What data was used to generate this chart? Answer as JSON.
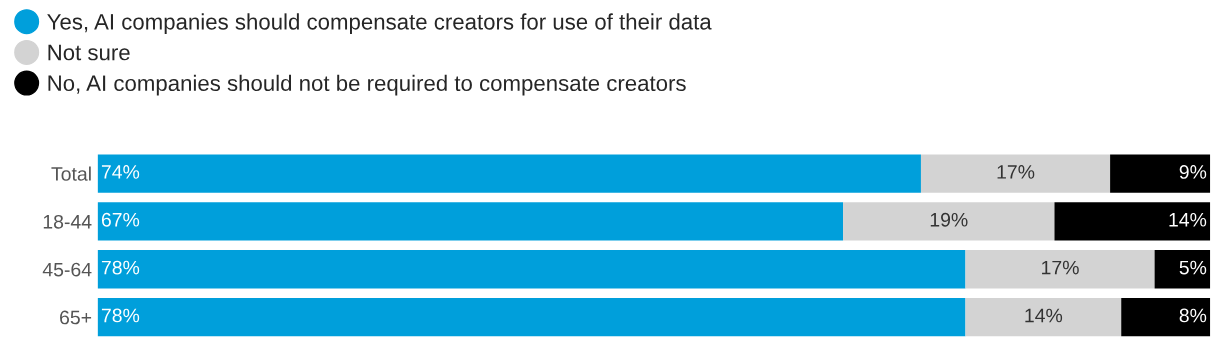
{
  "chart_data": {
    "type": "bar",
    "orientation": "horizontal",
    "stacked": true,
    "categories": [
      "Total",
      "18-44",
      "45-64",
      "65+"
    ],
    "series": [
      {
        "name": "Yes, AI companies should compensate creators for use of their data",
        "color": "#009fdb",
        "values": [
          74,
          67,
          78,
          78
        ],
        "value_labels": [
          "74%",
          "67%",
          "78%",
          "78%"
        ]
      },
      {
        "name": "Not sure",
        "color": "#d3d3d3",
        "values": [
          17,
          19,
          17,
          14
        ],
        "value_labels": [
          "17%",
          "19%",
          "17%",
          "14%"
        ]
      },
      {
        "name": "No, AI companies should not be required to compensate creators",
        "color": "#000000",
        "values": [
          9,
          14,
          5,
          8
        ],
        "value_labels": [
          "9%",
          "14%",
          "5%",
          "8%"
        ]
      }
    ],
    "legend": "top left",
    "marker": "circle",
    "grid": false,
    "tick_labels": "y"
  }
}
